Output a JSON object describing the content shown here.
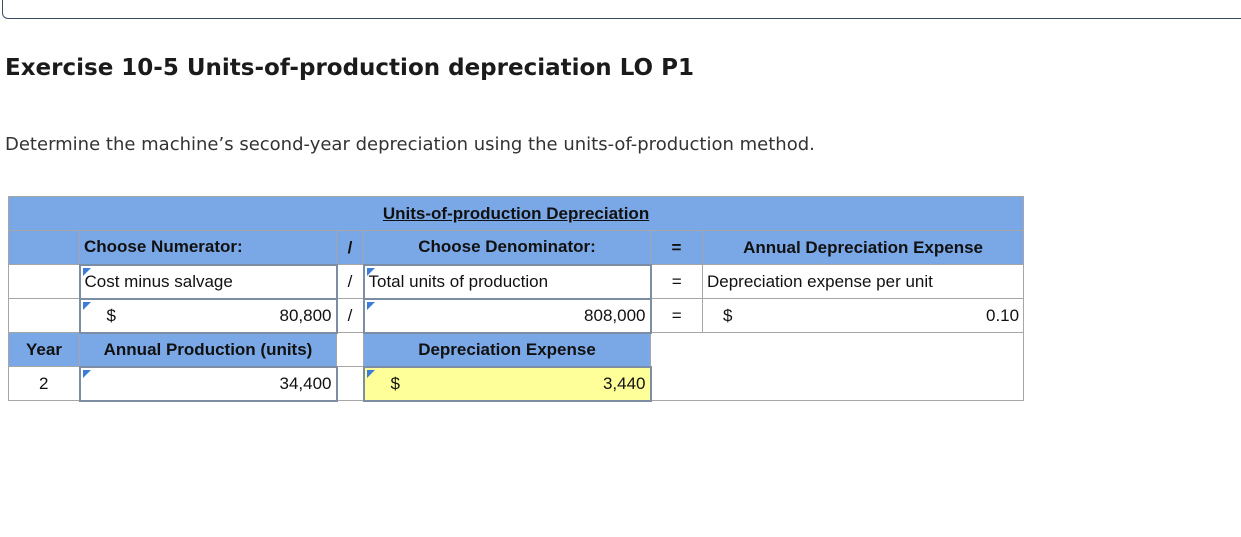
{
  "title": "Exercise 10-5 Units-of-production depreciation LO P1",
  "instruction": "Determine the machine’s second-year depreciation using the units-of-production method.",
  "table": {
    "banner": "Units-of-production Depreciation",
    "header": {
      "numerator": "Choose Numerator:",
      "slash": "/",
      "denominator": "Choose Denominator:",
      "equals": "=",
      "result": "Annual Depreciation Expense"
    },
    "labels_row": {
      "numerator": "Cost minus salvage",
      "slash": "/",
      "denominator": "Total units of production",
      "equals": "=",
      "result": "Depreciation expense per unit"
    },
    "values_row": {
      "numerator_symbol": "$",
      "numerator": "80,800",
      "slash": "/",
      "denominator": "808,000",
      "equals": "=",
      "result_symbol": "$",
      "result": "0.10"
    },
    "year_header": {
      "year": "Year",
      "production": "Annual Production (units)",
      "expense": "Depreciation Expense"
    },
    "year_row": {
      "year": "2",
      "production": "34,400",
      "expense_symbol": "$",
      "expense": "3,440"
    }
  }
}
